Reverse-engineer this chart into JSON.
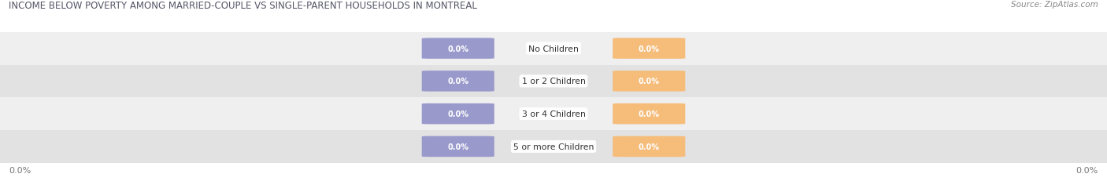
{
  "title": "INCOME BELOW POVERTY AMONG MARRIED-COUPLE VS SINGLE-PARENT HOUSEHOLDS IN MONTREAL",
  "source": "Source: ZipAtlas.com",
  "categories": [
    "No Children",
    "1 or 2 Children",
    "3 or 4 Children",
    "5 or more Children"
  ],
  "married_values": [
    0.0,
    0.0,
    0.0,
    0.0
  ],
  "single_values": [
    0.0,
    0.0,
    0.0,
    0.0
  ],
  "married_color": "#9999cc",
  "single_color": "#f5bc7a",
  "row_bg_light": "#efefef",
  "row_bg_dark": "#e2e2e2",
  "title_color": "#555566",
  "source_color": "#888888",
  "value_label_color": "#ffffff",
  "category_label_color": "#333333",
  "axis_label_color": "#777777",
  "background_color": "#ffffff",
  "axis_value": "0.0%"
}
